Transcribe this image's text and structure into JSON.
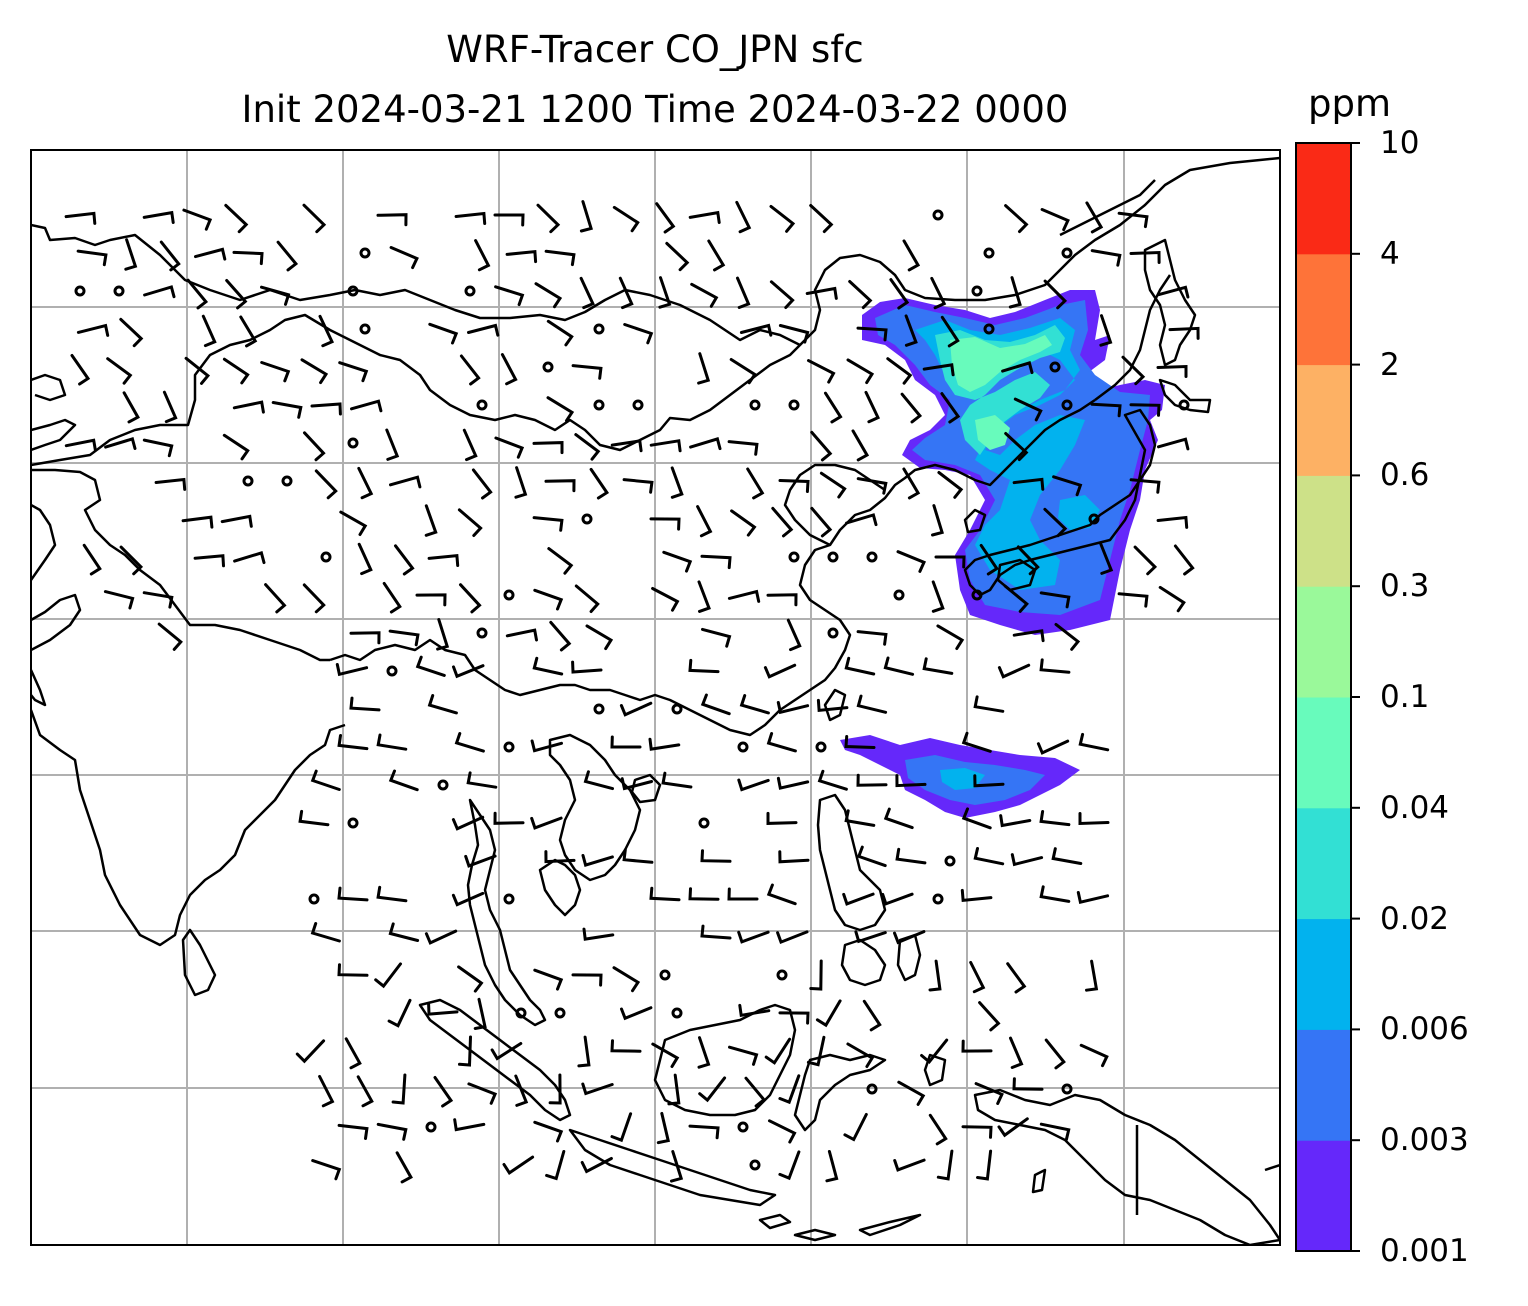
{
  "title": {
    "line1": "WRF-Tracer CO_JPN sfc",
    "line2": "Init 2024-03-21 1200 Time 2024-03-22 0000"
  },
  "colorbar": {
    "unit": "ppm",
    "levels": [
      "0.001",
      "0.003",
      "0.006",
      "0.02",
      "0.04",
      "0.1",
      "0.3",
      "0.6",
      "2",
      "4",
      "10"
    ],
    "colors": [
      "#6528fa",
      "#3575f5",
      "#02b2ee",
      "#32e0d4",
      "#68fbbc",
      "#9af99a",
      "#cde188",
      "#fdb164",
      "#fe7339",
      "#fa2a16"
    ]
  },
  "map": {
    "gridlines": true,
    "coastline_color": "#000000",
    "gridline_color": "#b0b0b0"
  }
}
